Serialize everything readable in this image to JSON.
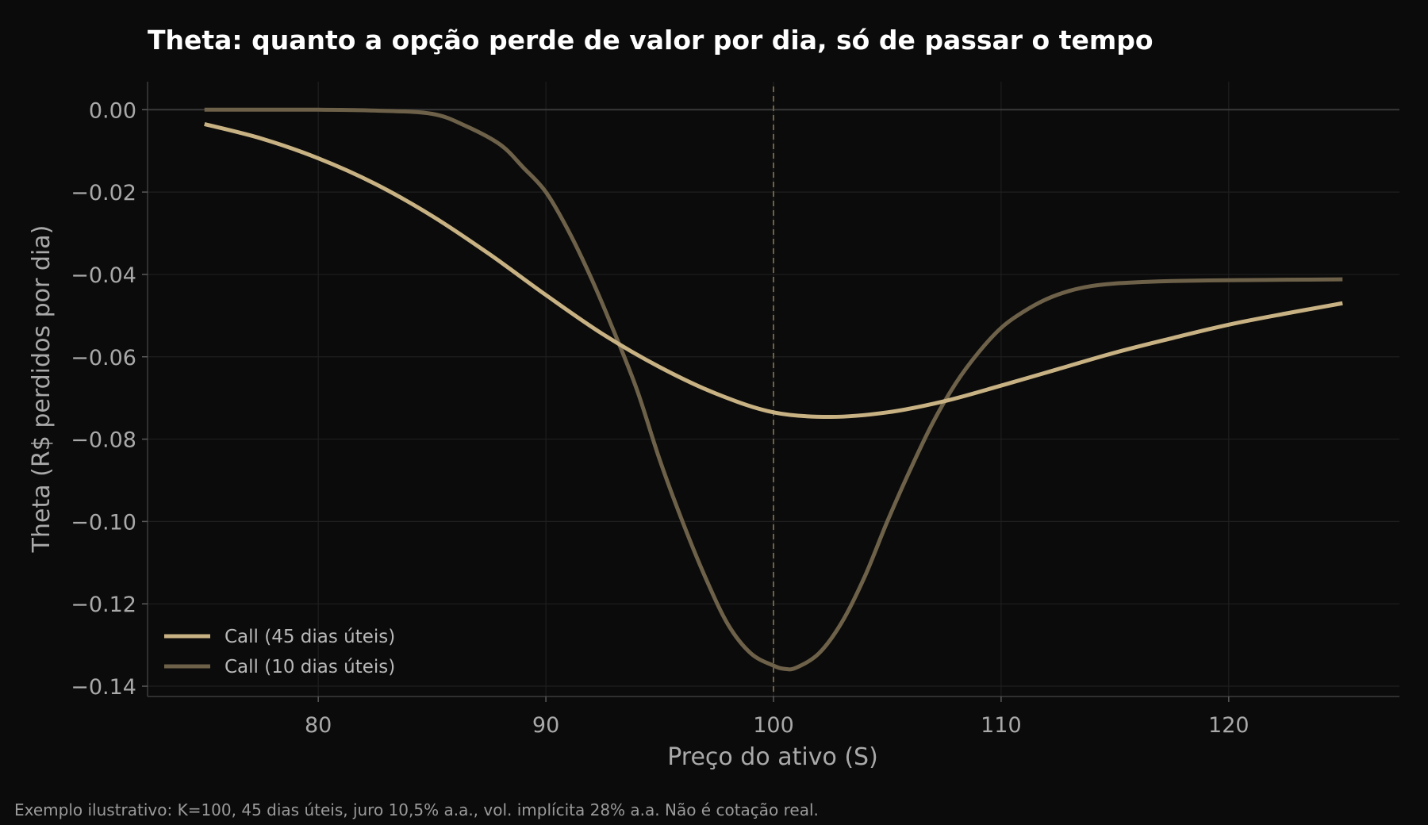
{
  "chart_data": {
    "type": "line",
    "title": "Theta: quanto a opção perde de valor por dia, só de passar o tempo",
    "xlabel": "Preço do ativo (S)",
    "ylabel": "Theta (R$ perdidos por dia)",
    "xlim": [
      72.5,
      127.5
    ],
    "ylim": [
      -0.1425,
      0.0068
    ],
    "xticks": [
      80,
      90,
      100,
      110,
      120
    ],
    "yticks": [
      0.0,
      -0.02,
      -0.04,
      -0.06,
      -0.08,
      -0.1,
      -0.12,
      -0.14
    ],
    "ytick_labels": [
      "0.00",
      "−0.02",
      "−0.04",
      "−0.06",
      "−0.08",
      "−0.10",
      "−0.12",
      "−0.14"
    ],
    "grid": true,
    "reference_lines": {
      "horizontal_y": 0.0,
      "vertical_x_dashed": 100
    },
    "legend_position": "bottom-left",
    "series": [
      {
        "name": "Call (45 dias úteis)",
        "color": "#c8b283",
        "x": [
          75,
          77.5,
          80,
          82.5,
          85,
          87.5,
          90,
          92.5,
          95,
          97.5,
          100,
          102.5,
          105,
          107.5,
          110,
          112.5,
          115,
          117.5,
          120,
          122.5,
          125
        ],
        "y": [
          -0.0035,
          -0.007,
          -0.0118,
          -0.018,
          -0.0258,
          -0.035,
          -0.045,
          -0.0545,
          -0.0625,
          -0.069,
          -0.0735,
          -0.0746,
          -0.0735,
          -0.0708,
          -0.067,
          -0.063,
          -0.059,
          -0.0555,
          -0.0522,
          -0.0495,
          -0.047
        ]
      },
      {
        "name": "Call (10 dias úteis)",
        "color": "#6e6149",
        "x": [
          75,
          80,
          82.5,
          85,
          86.5,
          88,
          89,
          90,
          91,
          92,
          93,
          94,
          95,
          96,
          97,
          98,
          99,
          100,
          100.5,
          101,
          102,
          103,
          104,
          105,
          106,
          107,
          108,
          109,
          110,
          111,
          112,
          113,
          114,
          115,
          116,
          117.5,
          120,
          122.5,
          125
        ],
        "y": [
          0.0,
          0.0,
          -0.0002,
          -0.001,
          -0.004,
          -0.0085,
          -0.014,
          -0.02,
          -0.0295,
          -0.041,
          -0.054,
          -0.068,
          -0.085,
          -0.1,
          -0.1135,
          -0.125,
          -0.132,
          -0.135,
          -0.1358,
          -0.1355,
          -0.132,
          -0.1245,
          -0.1135,
          -0.1,
          -0.0875,
          -0.076,
          -0.0665,
          -0.059,
          -0.053,
          -0.049,
          -0.046,
          -0.044,
          -0.0428,
          -0.0422,
          -0.0419,
          -0.0416,
          -0.0414,
          -0.0413,
          -0.0412
        ]
      }
    ]
  },
  "footnote": "Exemplo ilustrativo: K=100, 45 dias úteis, juro 10,5% a.a., vol. implícita 28% a.a. Não é cotação real."
}
